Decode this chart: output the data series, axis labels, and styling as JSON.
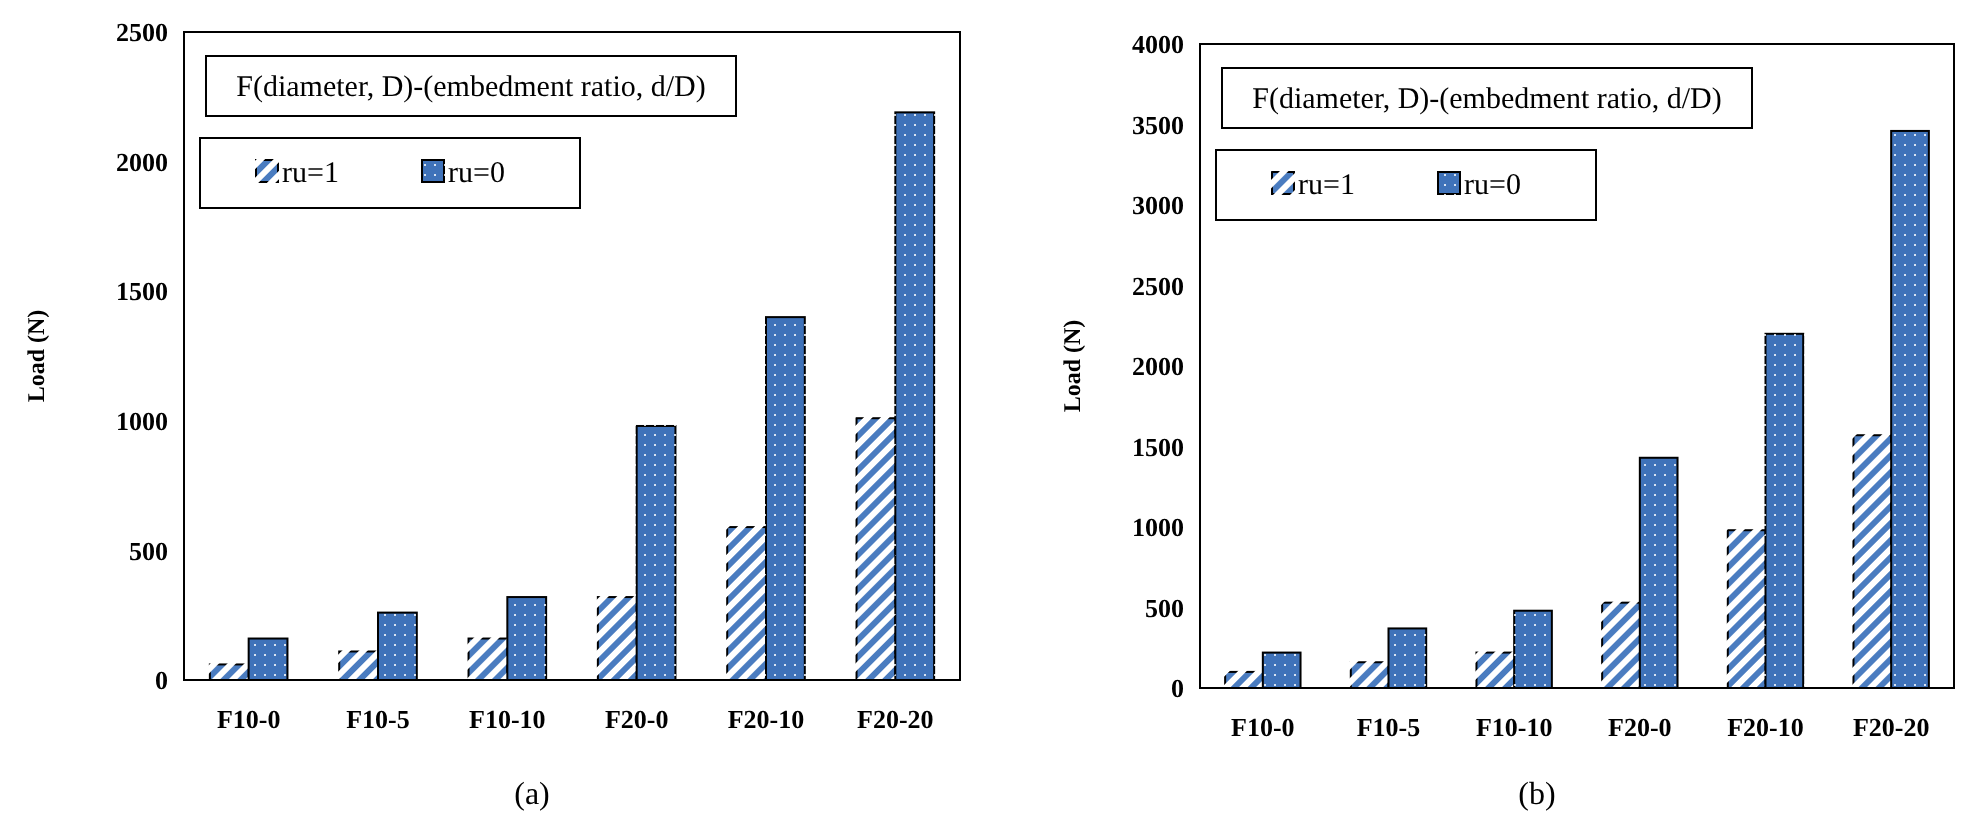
{
  "chart_data": [
    {
      "type": "bar",
      "ylabel": "Load (N)",
      "legend_title": "F(diameter, D)-(embedment ratio, d/D)",
      "legend": "top left",
      "categories": [
        "F10-0",
        "F10-5",
        "F10-10",
        "F20-0",
        "F20-10",
        "F20-20"
      ],
      "ylim": [
        0,
        2500
      ],
      "yticks": [
        0,
        500,
        1000,
        1500,
        2000,
        2500
      ],
      "annotations": [
        "(a)"
      ],
      "series": [
        {
          "name": "ru=1",
          "color": "#4a7cc0",
          "values": [
            60,
            110,
            160,
            320,
            590,
            1010
          ]
        },
        {
          "name": "ru=0",
          "color": "#3f72b9",
          "values": [
            160,
            260,
            320,
            980,
            1400,
            2190
          ]
        }
      ]
    },
    {
      "type": "bar",
      "ylabel": "Load (N)",
      "legend_title": "F(diameter, D)-(embedment ratio, d/D)",
      "legend": "top left",
      "categories": [
        "F10-0",
        "F10-5",
        "F10-10",
        "F20-0",
        "F20-10",
        "F20-20"
      ],
      "ylim": [
        0,
        4000
      ],
      "yticks": [
        0,
        500,
        1000,
        1500,
        2000,
        2500,
        3000,
        3500,
        4000
      ],
      "annotations": [
        "(b)"
      ],
      "series": [
        {
          "name": "ru=1",
          "color": "#4a7cc0",
          "values": [
            100,
            160,
            220,
            530,
            980,
            1570
          ]
        },
        {
          "name": "ru=0",
          "color": "#3f72b9",
          "values": [
            220,
            370,
            480,
            1430,
            2200,
            3460
          ]
        }
      ]
    }
  ]
}
